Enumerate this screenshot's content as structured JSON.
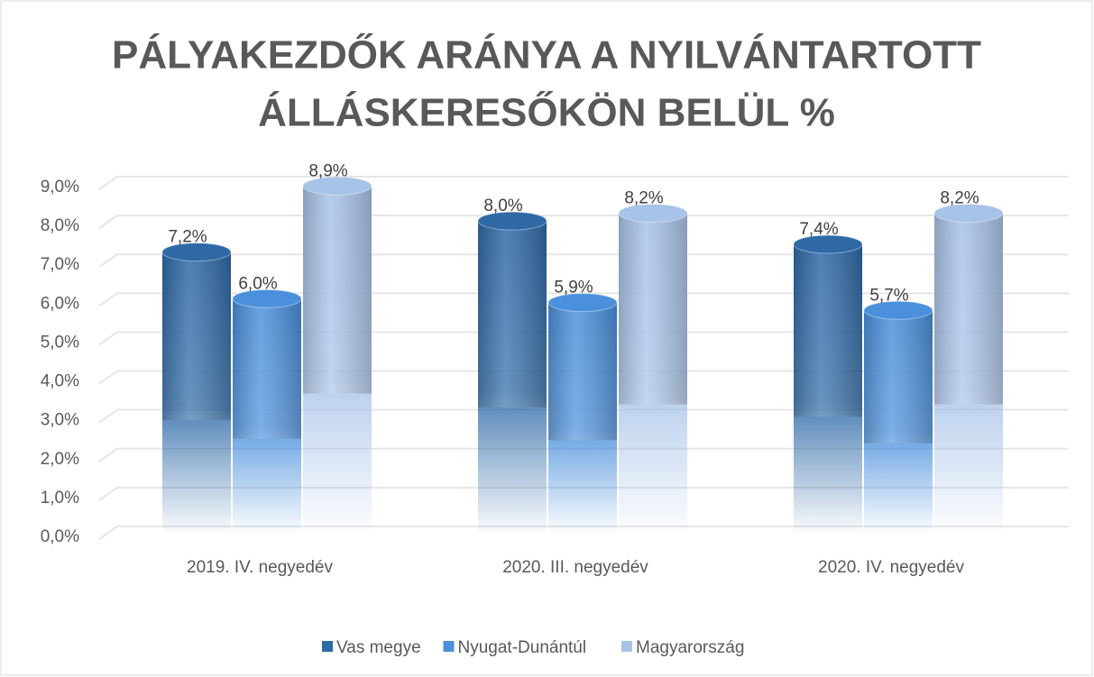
{
  "chart_data": {
    "type": "bar",
    "title": [
      "PÁLYAKEZDŐK ARÁNYA A NYILVÁNTARTOTT",
      "ÁLLÁSKERESŐKÖN BELÜL %"
    ],
    "categories": [
      "2019. IV. negyedév",
      "2020. III. negyedév",
      "2020. IV. negyedév"
    ],
    "series": [
      {
        "name": "Vas megye",
        "color": "#2f6aa7",
        "values": [
          7.2,
          8.0,
          7.4
        ],
        "value_labels": [
          "7,2%",
          "8,0%",
          "7,4%"
        ]
      },
      {
        "name": "Nyugat-Dunántúl",
        "color": "#4a90dc",
        "values": [
          6.0,
          5.9,
          5.7
        ],
        "value_labels": [
          "6,0%",
          "5,9%",
          "5,7%"
        ]
      },
      {
        "name": "Magyarország",
        "color": "#a8c3e8",
        "values": [
          8.9,
          8.2,
          8.2
        ],
        "value_labels": [
          "8,9%",
          "8,2%",
          "8,2%"
        ]
      }
    ],
    "ylim": [
      0,
      9
    ],
    "yticks": [
      {
        "value": 0,
        "label": "0,0%"
      },
      {
        "value": 1,
        "label": "1,0%"
      },
      {
        "value": 2,
        "label": "2,0%"
      },
      {
        "value": 3,
        "label": "3,0%"
      },
      {
        "value": 4,
        "label": "4,0%"
      },
      {
        "value": 5,
        "label": "5,0%"
      },
      {
        "value": 6,
        "label": "6,0%"
      },
      {
        "value": 7,
        "label": "7,0%"
      },
      {
        "value": 8,
        "label": "8,0%"
      },
      {
        "value": 9,
        "label": "9,0%"
      }
    ],
    "grid": true,
    "legend": "bottom"
  }
}
